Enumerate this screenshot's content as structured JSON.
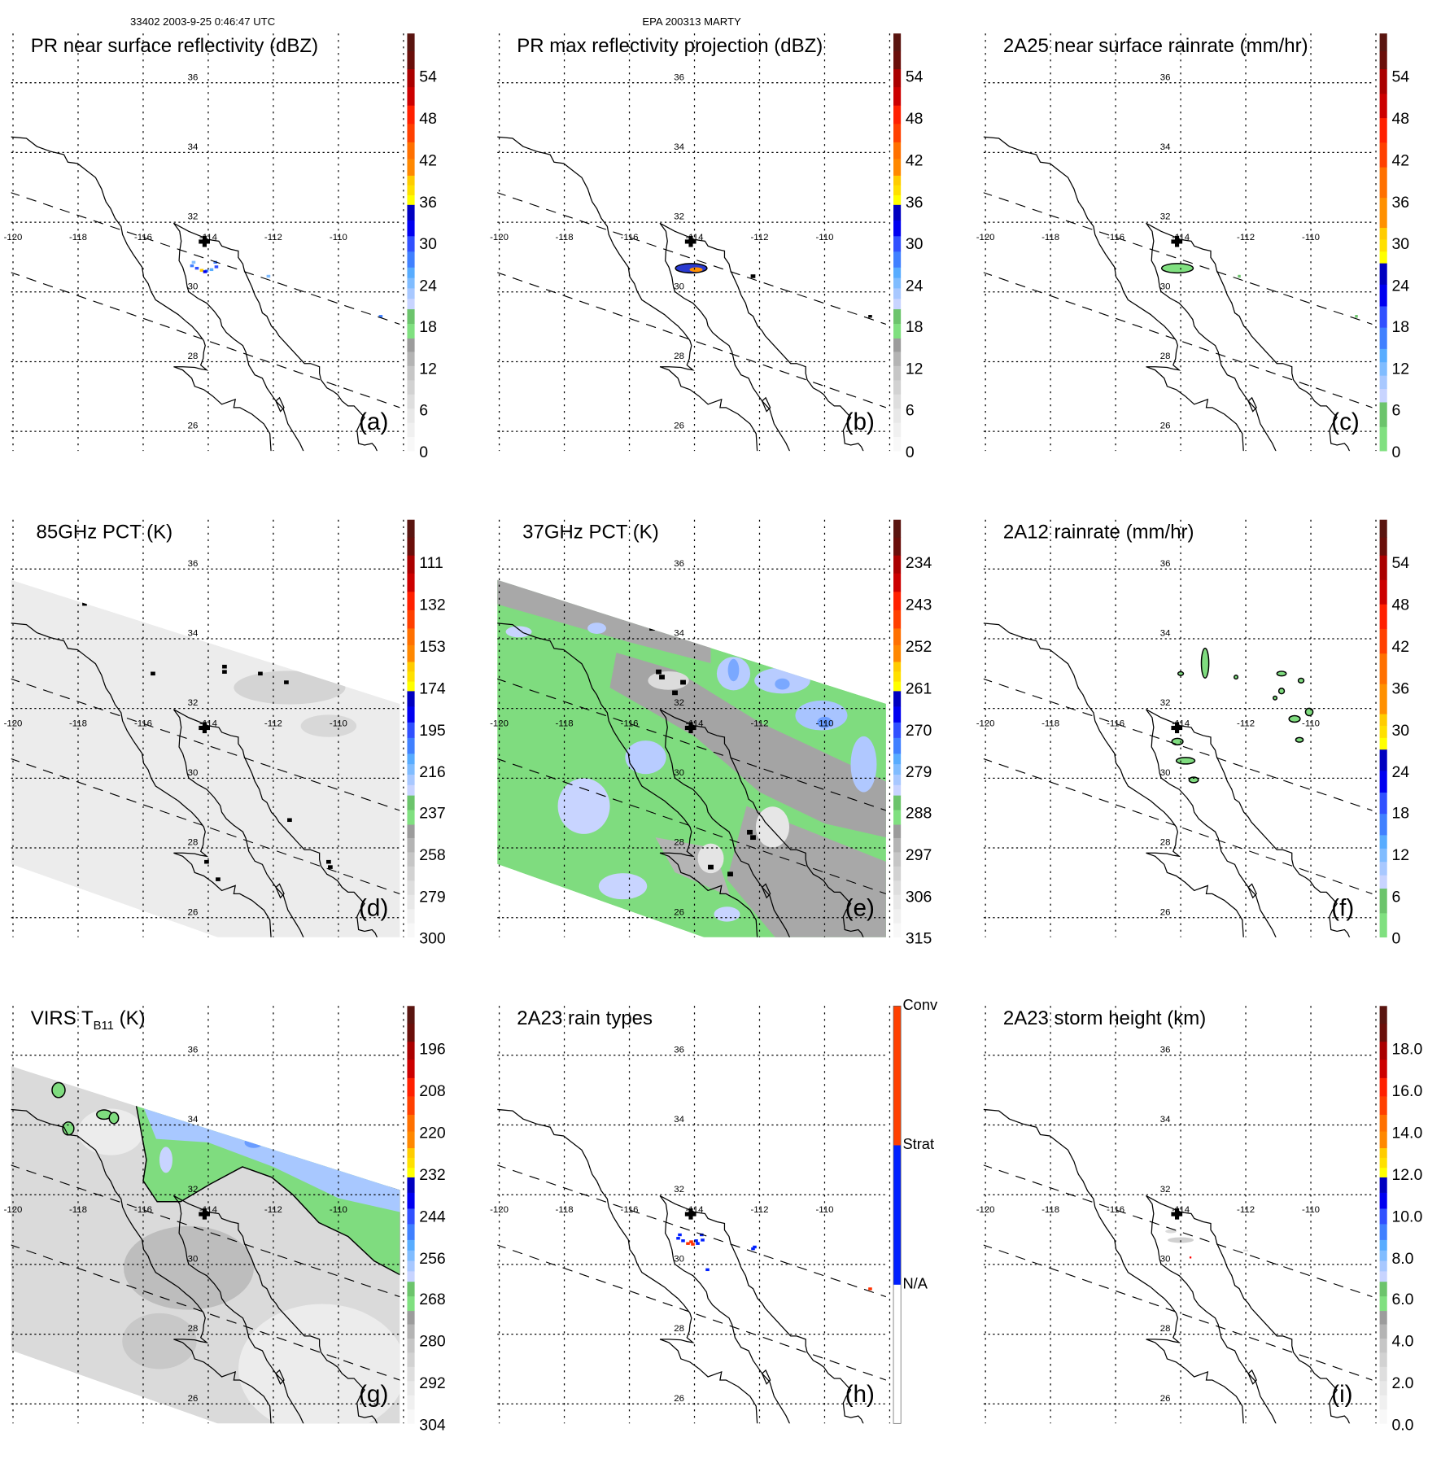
{
  "header": {
    "orbit_time": "33402 2003-9-25 0:46:47 UTC",
    "case_id": "EPA 200313 MARTY"
  },
  "map": {
    "lon_labels": [
      "-120",
      "-118",
      "-116",
      "-114",
      "-112",
      "-110"
    ],
    "lat_labels": [
      "36",
      "34",
      "32",
      "30",
      "28",
      "26"
    ]
  },
  "colormaps": {
    "A": [
      [
        "#f8f8f8",
        0.034
      ],
      [
        "#f0f0f0",
        0.068
      ],
      [
        "#e8e8e8",
        0.102
      ],
      [
        "#dedede",
        0.136
      ],
      [
        "#d2d2d2",
        0.17
      ],
      [
        "#c6c6c6",
        0.204
      ],
      [
        "#b4b4b4",
        0.238
      ],
      [
        "#9c9c9c",
        0.27
      ],
      [
        "#80e080",
        0.305
      ],
      [
        "#6cc46c",
        0.34
      ],
      [
        "#c8d4ff",
        0.365
      ],
      [
        "#a8c8ff",
        0.39
      ],
      [
        "#80bcff",
        0.415
      ],
      [
        "#58acff",
        0.44
      ],
      [
        "#4080ff",
        0.478
      ],
      [
        "#3050ff",
        0.515
      ],
      [
        "#0000f0",
        0.553
      ],
      [
        "#0000c0",
        0.59
      ],
      [
        "#ffff00",
        0.613
      ],
      [
        "#ffe000",
        0.637
      ],
      [
        "#ffcc00",
        0.66
      ],
      [
        "#ff8800",
        0.7
      ],
      [
        "#ff7000",
        0.74
      ],
      [
        "#ff4000",
        0.784
      ],
      [
        "#ff2000",
        0.828
      ],
      [
        "#cc0000",
        0.872
      ],
      [
        "#aa0000",
        0.915
      ],
      [
        "#6a0e0a",
        0.958
      ],
      [
        "#5a1510",
        1.0
      ]
    ],
    "C": [
      [
        "#80e080",
        0.058
      ],
      [
        "#6cc46c",
        0.117
      ],
      [
        "#c8d4ff",
        0.149
      ],
      [
        "#a8c8ff",
        0.181
      ],
      [
        "#80bcff",
        0.213
      ],
      [
        "#58acff",
        0.245
      ],
      [
        "#4080ff",
        0.296
      ],
      [
        "#3050ff",
        0.347
      ],
      [
        "#0000f0",
        0.399
      ],
      [
        "#0000c0",
        0.45
      ],
      [
        "#ffff00",
        0.478
      ],
      [
        "#ffe000",
        0.507
      ],
      [
        "#ffcc00",
        0.535
      ],
      [
        "#ff9000",
        0.607
      ],
      [
        "#ff7000",
        0.68
      ],
      [
        "#ff4000",
        0.739
      ],
      [
        "#ff2000",
        0.798
      ],
      [
        "#cc0000",
        0.856
      ],
      [
        "#aa0000",
        0.915
      ],
      [
        "#6a0e0a",
        0.958
      ],
      [
        "#5a1510",
        1.0
      ]
    ],
    "H": [
      [
        "#ffffff",
        0.333
      ],
      [
        "#0020ff",
        0.667
      ],
      [
        "#ff4000",
        1.0
      ]
    ]
  },
  "panels": [
    {
      "id": "a",
      "title": "PR near surface reflectivity (dBZ)",
      "letter": "(a)",
      "cmap": "A",
      "colorbar_labels": [
        "54",
        "48",
        "42",
        "36",
        "30",
        "24",
        "18",
        "12",
        "6",
        "0"
      ]
    },
    {
      "id": "b",
      "title": "PR max reflectivity projection (dBZ)",
      "letter": "(b)",
      "cmap": "A",
      "colorbar_labels": [
        "54",
        "48",
        "42",
        "36",
        "30",
        "24",
        "18",
        "12",
        "6",
        "0"
      ]
    },
    {
      "id": "c",
      "title": "2A25 near surface rainrate (mm/hr)",
      "letter": "(c)",
      "cmap": "C",
      "colorbar_labels": [
        "54",
        "48",
        "42",
        "36",
        "30",
        "24",
        "18",
        "12",
        "6",
        "0"
      ]
    },
    {
      "id": "d",
      "title": "85GHz PCT (K)",
      "letter": "(d)",
      "cmap": "A",
      "colorbar_labels": [
        "111",
        "132",
        "153",
        "174",
        "195",
        "216",
        "237",
        "258",
        "279",
        "300"
      ]
    },
    {
      "id": "e",
      "title": "37GHz PCT (K)",
      "letter": "(e)",
      "cmap": "A",
      "colorbar_labels": [
        "234",
        "243",
        "252",
        "261",
        "270",
        "279",
        "288",
        "297",
        "306",
        "315"
      ]
    },
    {
      "id": "f",
      "title": "2A12 rainrate (mm/hr)",
      "letter": "(f)",
      "cmap": "C",
      "colorbar_labels": [
        "54",
        "48",
        "42",
        "36",
        "30",
        "24",
        "18",
        "12",
        "6",
        "0"
      ]
    },
    {
      "id": "g",
      "title": "VIRS T",
      "title_sub": "B11",
      "title_suffix": " (K)",
      "letter": "(g)",
      "cmap": "A",
      "colorbar_labels": [
        "196",
        "208",
        "220",
        "232",
        "244",
        "256",
        "268",
        "280",
        "292",
        "304"
      ]
    },
    {
      "id": "h",
      "title": "2A23 rain types",
      "letter": "(h)",
      "cmap": "H",
      "colorbar_labels": [
        "Conv",
        "Strat",
        "N/A"
      ]
    },
    {
      "id": "i",
      "title": "2A23 storm height (km)",
      "letter": "(i)",
      "cmap": "A",
      "colorbar_labels": [
        "18.0",
        "16.0",
        "14.0",
        "12.0",
        "10.0",
        "8.0",
        "6.0",
        "4.0",
        "2.0",
        "0.0"
      ]
    }
  ]
}
